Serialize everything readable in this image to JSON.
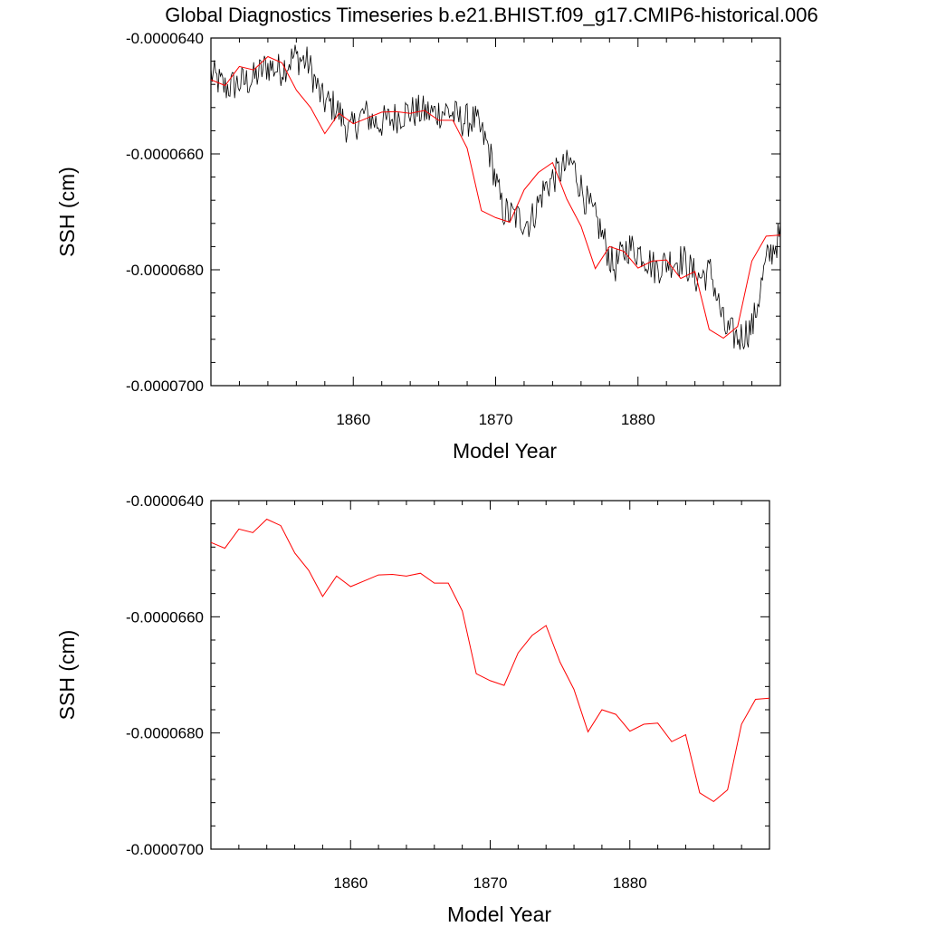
{
  "title": "Global Diagnostics Timeseries b.e21.BHIST.f09_g17.CMIP6-historical.006",
  "colors": {
    "monthly": "#000000",
    "annual": "#ff0000",
    "axes": "#000000"
  },
  "chart_data": [
    {
      "type": "line",
      "xlabel": "Model Year",
      "ylabel": "SSH (cm)",
      "xlim": [
        1850,
        1890
      ],
      "ylim": [
        -7e-05,
        -6.4e-05
      ],
      "xticks": [
        1860,
        1870,
        1880
      ],
      "xtick_labels": [
        "1860",
        "1870",
        "1880"
      ],
      "yticks": [
        -7e-05,
        -6.8e-05,
        -6.6e-05,
        -6.4e-05
      ],
      "ytick_labels": [
        "-0.0000700",
        "-0.0000680",
        "-0.0000660",
        "-0.0000640"
      ],
      "series": [
        {
          "name": "monthly",
          "color": "#000000",
          "monthly_anchor_values": [
            -6.462e-05,
            -6.486e-05,
            -6.478e-05,
            -6.472e-05,
            -6.448e-05,
            -6.455e-05,
            -6.432e-05,
            -6.443e-05,
            -6.507e-05,
            -6.52e-05,
            -6.562e-05,
            -6.53e-05,
            -6.548e-05,
            -6.54e-05,
            -6.528e-05,
            -6.527e-05,
            -6.53e-05,
            -6.525e-05,
            -6.542e-05,
            -6.542e-05,
            -6.59e-05,
            -6.698e-05,
            -6.71e-05,
            -6.718e-05,
            -6.66e-05,
            -6.632e-05,
            -6.615e-05,
            -6.68e-05,
            -6.728e-05,
            -6.798e-05,
            -6.76e-05,
            -6.77e-05,
            -6.798e-05,
            -6.785e-05,
            -6.783e-05,
            -6.815e-05,
            -6.803e-05,
            -6.903e-05,
            -6.918e-05,
            -6.898e-05,
            -6.785e-05,
            -6.74e-05
          ],
          "x_range": [
            1850,
            1890
          ],
          "noise_amplitude": 3e-07
        },
        {
          "name": "annual",
          "color": "#ff0000",
          "x": [
            1850,
            1851,
            1852,
            1853,
            1854,
            1855,
            1856,
            1857,
            1858,
            1859,
            1860,
            1861,
            1862,
            1863,
            1864,
            1865,
            1866,
            1867,
            1868,
            1869,
            1870,
            1871,
            1872,
            1873,
            1874,
            1875,
            1876,
            1877,
            1878,
            1879,
            1880,
            1881,
            1882,
            1883,
            1884,
            1885,
            1886,
            1887,
            1888,
            1889,
            1890
          ],
          "values": [
            -6.472e-05,
            -6.482e-05,
            -6.449e-05,
            -6.455e-05,
            -6.432e-05,
            -6.443e-05,
            -6.49e-05,
            -6.52e-05,
            -6.565e-05,
            -6.53e-05,
            -6.548e-05,
            -6.538e-05,
            -6.528e-05,
            -6.527e-05,
            -6.53e-05,
            -6.525e-05,
            -6.542e-05,
            -6.542e-05,
            -6.59e-05,
            -6.698e-05,
            -6.71e-05,
            -6.718e-05,
            -6.662e-05,
            -6.632e-05,
            -6.615e-05,
            -6.678e-05,
            -6.725e-05,
            -6.798e-05,
            -6.76e-05,
            -6.768e-05,
            -6.797e-05,
            -6.785e-05,
            -6.783e-05,
            -6.815e-05,
            -6.803e-05,
            -6.903e-05,
            -6.918e-05,
            -6.898e-05,
            -6.785e-05,
            -6.742e-05,
            -6.74e-05
          ]
        }
      ]
    },
    {
      "type": "line",
      "xlabel": "Model Year",
      "ylabel": "SSH (cm)",
      "xlim": [
        1850,
        1890
      ],
      "ylim": [
        -7e-05,
        -6.4e-05
      ],
      "xticks": [
        1860,
        1870,
        1880
      ],
      "xtick_labels": [
        "1860",
        "1870",
        "1880"
      ],
      "yticks": [
        -7e-05,
        -6.8e-05,
        -6.6e-05,
        -6.4e-05
      ],
      "ytick_labels": [
        "-0.0000700",
        "-0.0000680",
        "-0.0000660",
        "-0.0000640"
      ],
      "series": [
        {
          "name": "annual",
          "color": "#ff0000",
          "x": [
            1850,
            1851,
            1852,
            1853,
            1854,
            1855,
            1856,
            1857,
            1858,
            1859,
            1860,
            1861,
            1862,
            1863,
            1864,
            1865,
            1866,
            1867,
            1868,
            1869,
            1870,
            1871,
            1872,
            1873,
            1874,
            1875,
            1876,
            1877,
            1878,
            1879,
            1880,
            1881,
            1882,
            1883,
            1884,
            1885,
            1886,
            1887,
            1888,
            1889,
            1890
          ],
          "values": [
            -6.472e-05,
            -6.482e-05,
            -6.449e-05,
            -6.455e-05,
            -6.432e-05,
            -6.443e-05,
            -6.49e-05,
            -6.52e-05,
            -6.565e-05,
            -6.53e-05,
            -6.548e-05,
            -6.538e-05,
            -6.528e-05,
            -6.527e-05,
            -6.53e-05,
            -6.525e-05,
            -6.542e-05,
            -6.542e-05,
            -6.59e-05,
            -6.698e-05,
            -6.71e-05,
            -6.718e-05,
            -6.662e-05,
            -6.632e-05,
            -6.615e-05,
            -6.678e-05,
            -6.725e-05,
            -6.798e-05,
            -6.76e-05,
            -6.768e-05,
            -6.797e-05,
            -6.785e-05,
            -6.783e-05,
            -6.815e-05,
            -6.803e-05,
            -6.903e-05,
            -6.918e-05,
            -6.898e-05,
            -6.785e-05,
            -6.742e-05,
            -6.74e-05
          ]
        }
      ]
    }
  ]
}
